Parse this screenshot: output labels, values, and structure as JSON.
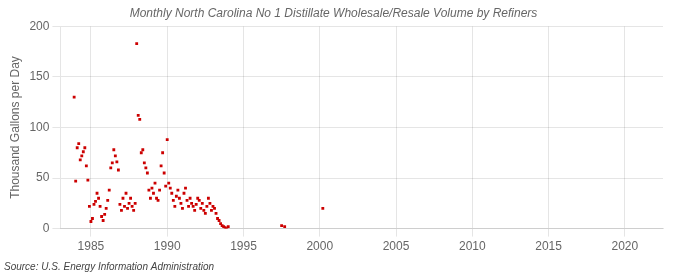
{
  "chart_data": {
    "type": "scatter",
    "title": "Monthly North Carolina No 1 Distillate Wholesale/Resale Volume by Refiners",
    "y_label": "Thousand Gallons per Day",
    "annotations": [
      "Source: U.S. Energy Information Administration"
    ],
    "color": "#cc0000",
    "marker": "square",
    "grid": true,
    "xlim": [
      1983.0,
      2022.5
    ],
    "ylim": [
      0,
      200
    ],
    "xticks": [
      1985,
      1990,
      1995,
      2000,
      2005,
      2010,
      2015,
      2020
    ],
    "yticks": [
      0,
      50,
      100,
      150,
      200
    ],
    "x": [
      1983.9,
      1984.0,
      1984.1,
      1984.2,
      1984.3,
      1984.4,
      1984.5,
      1984.6,
      1984.7,
      1984.8,
      1984.9,
      1985.0,
      1985.1,
      1985.2,
      1985.3,
      1985.4,
      1985.5,
      1985.6,
      1985.7,
      1985.8,
      1985.9,
      1986.0,
      1986.1,
      1986.2,
      1986.3,
      1986.4,
      1986.5,
      1986.6,
      1986.7,
      1986.8,
      1986.9,
      1987.0,
      1987.1,
      1987.2,
      1987.3,
      1987.4,
      1987.5,
      1987.6,
      1987.7,
      1987.8,
      1987.9,
      1988.0,
      1988.1,
      1988.2,
      1988.3,
      1988.4,
      1988.5,
      1988.6,
      1988.7,
      1988.8,
      1988.9,
      1989.0,
      1989.1,
      1989.2,
      1989.3,
      1989.4,
      1989.5,
      1989.6,
      1989.7,
      1989.8,
      1989.9,
      1990.0,
      1990.1,
      1990.2,
      1990.3,
      1990.4,
      1990.5,
      1990.6,
      1990.7,
      1990.8,
      1990.9,
      1991.0,
      1991.1,
      1991.2,
      1991.3,
      1991.4,
      1991.5,
      1991.6,
      1991.7,
      1991.8,
      1991.9,
      1992.0,
      1992.1,
      1992.2,
      1992.3,
      1992.4,
      1992.5,
      1992.6,
      1992.7,
      1992.8,
      1992.9,
      1993.0,
      1993.1,
      1993.2,
      1993.3,
      1993.4,
      1993.5,
      1993.6,
      1993.7,
      1993.8,
      1993.9,
      1994.0,
      1997.5,
      1997.7,
      2000.2
    ],
    "values": [
      130,
      47,
      80,
      84,
      68,
      72,
      76,
      80,
      62,
      48,
      22,
      7,
      10,
      24,
      27,
      35,
      30,
      22,
      12,
      8,
      14,
      20,
      28,
      38,
      60,
      65,
      78,
      72,
      66,
      58,
      24,
      18,
      30,
      22,
      35,
      20,
      25,
      30,
      22,
      18,
      25,
      183,
      112,
      108,
      75,
      78,
      65,
      60,
      55,
      38,
      30,
      40,
      35,
      45,
      30,
      28,
      38,
      62,
      75,
      55,
      42,
      88,
      45,
      40,
      35,
      28,
      22,
      32,
      38,
      30,
      25,
      20,
      35,
      40,
      28,
      22,
      30,
      25,
      22,
      18,
      24,
      30,
      28,
      20,
      25,
      18,
      15,
      22,
      30,
      25,
      18,
      22,
      20,
      15,
      10,
      8,
      5,
      3,
      2,
      1,
      0,
      2,
      3,
      2,
      20
    ]
  }
}
